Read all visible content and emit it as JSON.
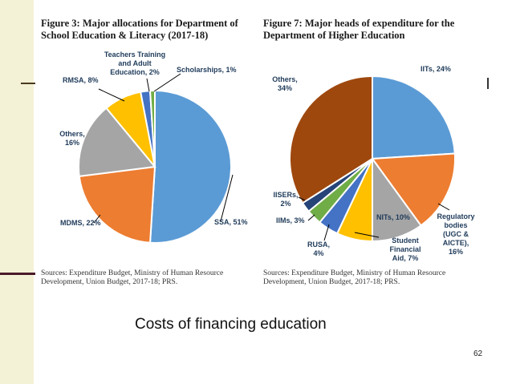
{
  "slide": {
    "caption": "Costs of financing education",
    "page_number": "62"
  },
  "chart_data": [
    {
      "type": "pie",
      "title": "Figure 3: Major allocations for Department of School Education & Literacy (2017-18)",
      "source": "Sources: Expenditure Budget, Ministry of Human Resource Development, Union Budget, 2017-18; PRS.",
      "slices": [
        {
          "label": "SSA, 51%",
          "value": 51,
          "color": "#5b9bd5"
        },
        {
          "label": "MDMS, 22%",
          "value": 22,
          "color": "#ed7d31"
        },
        {
          "label": "Others, 16%",
          "value": 16,
          "color": "#a5a5a5"
        },
        {
          "label": "RMSA, 8%",
          "value": 8,
          "color": "#ffc000"
        },
        {
          "label": "Teachers Training and Adult Education, 2%",
          "value": 2,
          "color": "#4472c4"
        },
        {
          "label": "Scholarships, 1%",
          "value": 1,
          "color": "#70ad47"
        }
      ]
    },
    {
      "type": "pie",
      "title": "Figure 7: Major heads of expenditure for the Department of Higher Education",
      "source": "Sources: Expenditure Budget, Ministry of Human Resource Development, Union Budget, 2017-18; PRS.",
      "slices": [
        {
          "label": "IITs, 24%",
          "value": 24,
          "color": "#5b9bd5"
        },
        {
          "label": "Regulatory bodies (UGC & AICTE), 16%",
          "value": 16,
          "color": "#ed7d31"
        },
        {
          "label": "NITs, 10%",
          "value": 10,
          "color": "#a5a5a5"
        },
        {
          "label": "Student Financial Aid, 7%",
          "value": 7,
          "color": "#ffc000"
        },
        {
          "label": "RUSA, 4%",
          "value": 4,
          "color": "#4472c4"
        },
        {
          "label": "IIMs, 3%",
          "value": 3,
          "color": "#70ad47"
        },
        {
          "label": "IISERs, 2%",
          "value": 2,
          "color": "#264478"
        },
        {
          "label": "Others, 34%",
          "value": 34,
          "color": "#9e480e"
        }
      ]
    }
  ]
}
